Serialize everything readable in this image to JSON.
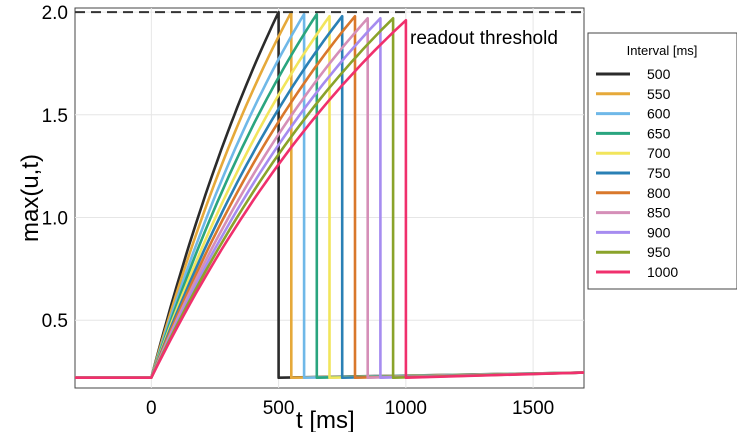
{
  "chart_data": {
    "type": "line",
    "xlabel": "t [ms]",
    "ylabel": "max(u,t)",
    "xlim": [
      -300,
      1700
    ],
    "ylim": [
      0.17,
      2.02
    ],
    "xticks": [
      0,
      500,
      1000,
      1500
    ],
    "yticks": [
      0.5,
      1.0,
      1.5,
      2.0
    ],
    "grid": true,
    "threshold": {
      "value": 2.0,
      "label": "readout threshold",
      "style": "dashed",
      "color": "#333333"
    },
    "baseline_start": 0.22,
    "baseline_end": 0.245,
    "tail_end_ms": 1700,
    "legend": {
      "title": "Interval [ms]",
      "placement": "right-outside"
    },
    "series": [
      {
        "name": "500",
        "interval": 500,
        "color": "#2b2b2b",
        "peak": 2.0,
        "rise_tau": 820
      },
      {
        "name": "550",
        "interval": 550,
        "color": "#e6a93a",
        "peak": 2.0,
        "rise_tau": 860
      },
      {
        "name": "600",
        "interval": 600,
        "color": "#6fb8e8",
        "peak": 1.99,
        "rise_tau": 900
      },
      {
        "name": "650",
        "interval": 650,
        "color": "#2aa57f",
        "peak": 1.99,
        "rise_tau": 940
      },
      {
        "name": "700",
        "interval": 700,
        "color": "#f2e55c",
        "peak": 1.98,
        "rise_tau": 990
      },
      {
        "name": "750",
        "interval": 750,
        "color": "#2a80b5",
        "peak": 1.98,
        "rise_tau": 1030
      },
      {
        "name": "800",
        "interval": 800,
        "color": "#d9782b",
        "peak": 1.98,
        "rise_tau": 1080
      },
      {
        "name": "850",
        "interval": 850,
        "color": "#d58fb8",
        "peak": 1.97,
        "rise_tau": 1120
      },
      {
        "name": "900",
        "interval": 900,
        "color": "#a68cf0",
        "peak": 1.97,
        "rise_tau": 1170
      },
      {
        "name": "950",
        "interval": 950,
        "color": "#8aa32a",
        "peak": 1.97,
        "rise_tau": 1220
      },
      {
        "name": "1000",
        "interval": 1000,
        "color": "#f0306d",
        "peak": 1.96,
        "rise_tau": 1270
      }
    ]
  }
}
